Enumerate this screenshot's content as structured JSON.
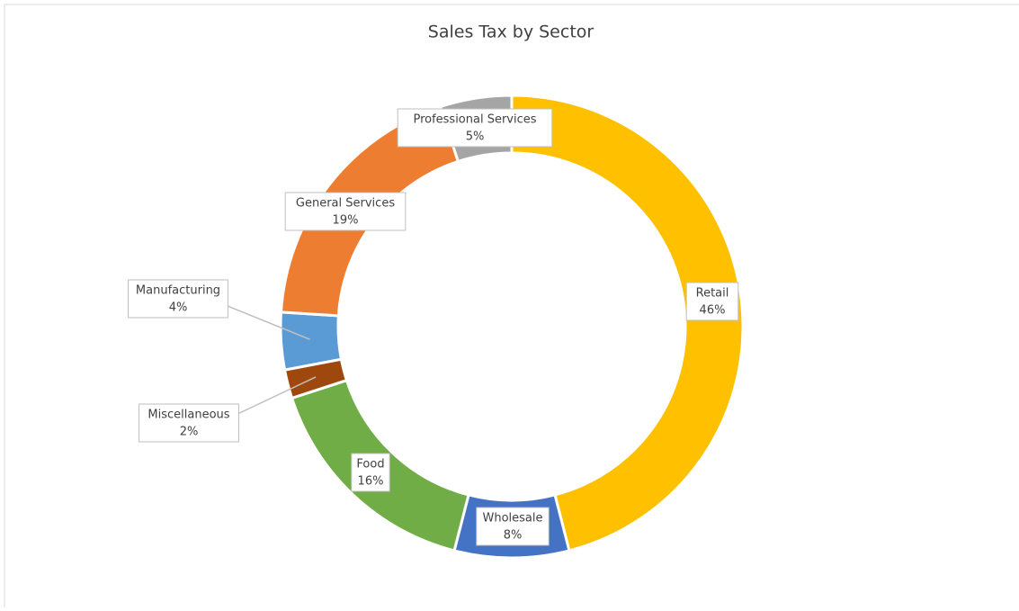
{
  "chart_data": {
    "type": "donut",
    "title": "Sales Tax by Sector",
    "categories": [
      "Retail",
      "Wholesale",
      "Food",
      "Miscellaneous",
      "Manufacturing",
      "General Services",
      "Professional Services"
    ],
    "values": [
      46,
      8,
      16,
      2,
      4,
      19,
      5
    ],
    "value_labels": [
      "46%",
      "8%",
      "16%",
      "2%",
      "4%",
      "19%",
      "5%"
    ],
    "colors": [
      "#ffc000",
      "#4472c4",
      "#70ad47",
      "#9e480e",
      "#5b9bd5",
      "#ed7d31",
      "#a5a5a5"
    ]
  }
}
